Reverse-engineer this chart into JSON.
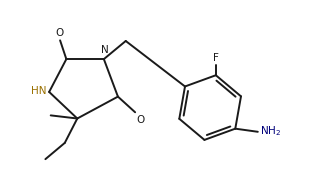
{
  "bg_color": "#ffffff",
  "line_color": "#1a1a1a",
  "lw": 1.4,
  "hn_color": "#9a7000",
  "nh2_color": "#00007a",
  "fs": 7.5,
  "figsize": [
    3.14,
    1.87
  ],
  "dpi": 100,
  "xlim": [
    0.0,
    10.0
  ],
  "ylim": [
    0.5,
    6.0
  ]
}
